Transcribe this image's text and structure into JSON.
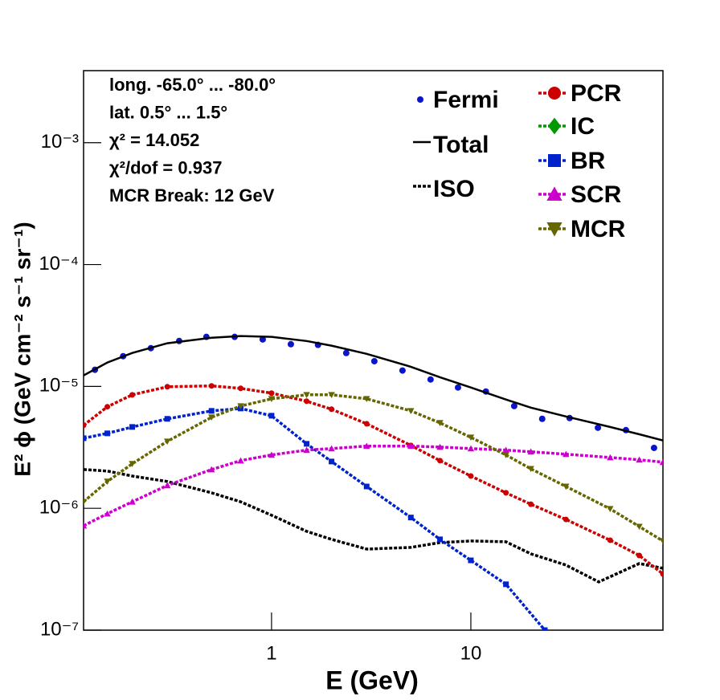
{
  "chart_data": {
    "type": "line",
    "log_x": true,
    "log_y": true,
    "xlim": [
      0.114,
      92
    ],
    "ylim": [
      1e-07,
      0.0039
    ],
    "xticks": [
      1,
      10
    ],
    "yticks": [
      {
        "value": 1e-07,
        "label": "10⁻⁷"
      },
      {
        "value": 1e-06,
        "label": "10⁻⁶"
      },
      {
        "value": 1e-05,
        "label": "10⁻⁵"
      },
      {
        "value": 0.0001,
        "label": "10⁻⁴"
      },
      {
        "value": 0.001,
        "label": "10⁻³"
      }
    ],
    "x_label": "E (GeV)",
    "y_label": "E² ϕ (GeV cm⁻² s⁻¹ sr⁻¹)",
    "annotations": [
      "long. -65.0° ... -80.0°",
      "lat. 0.5° ... 1.5°",
      "χ² = 14.052",
      "χ²/dof = 0.937",
      "MCR Break: 12 GeV"
    ],
    "series": [
      {
        "name": "Fermi",
        "color": "#0a14c8",
        "marker": "circle",
        "line": "none",
        "x": [
          0.13,
          0.18,
          0.248,
          0.344,
          0.471,
          0.653,
          0.903,
          1.25,
          1.71,
          2.37,
          3.28,
          4.54,
          6.28,
          8.62,
          11.9,
          16.5,
          22.8,
          31.3,
          43.4,
          60.0,
          83.0
        ],
        "values": [
          1.37e-05,
          1.77e-05,
          2.06e-05,
          2.36e-05,
          2.55e-05,
          2.55e-05,
          2.43e-05,
          2.22e-05,
          2.19e-05,
          1.88e-05,
          1.61e-05,
          1.35e-05,
          1.14e-05,
          9.8e-06,
          9.08e-06,
          6.9e-06,
          5.42e-06,
          5.5e-06,
          4.58e-06,
          4.38e-06,
          3.13e-06
        ]
      },
      {
        "name": "Total",
        "color": "#000000",
        "marker": "none",
        "line": "solid",
        "x": [
          0.114,
          0.15,
          0.2,
          0.3,
          0.5,
          0.7,
          1,
          1.5,
          2,
          3,
          5,
          7,
          10,
          15,
          20,
          30,
          50,
          70,
          92
        ],
        "values": [
          1.23e-05,
          1.57e-05,
          1.88e-05,
          2.26e-05,
          2.51e-05,
          2.59e-05,
          2.55e-05,
          2.36e-05,
          2.16e-05,
          1.85e-05,
          1.45e-05,
          1.19e-05,
          9.8e-06,
          7.8e-06,
          6.7e-06,
          5.67e-06,
          4.65e-06,
          4.05e-06,
          3.6e-06
        ]
      },
      {
        "name": "ISO",
        "color": "#000000",
        "marker": "none",
        "line": "dotted",
        "x": [
          0.114,
          0.15,
          0.2,
          0.3,
          0.5,
          0.7,
          1,
          1.5,
          2,
          3,
          5,
          7,
          10,
          15,
          20,
          30,
          43.8,
          70,
          92
        ],
        "values": [
          2.08e-06,
          2.02e-06,
          1.84e-06,
          1.66e-06,
          1.34e-06,
          1.13e-06,
          8.77e-07,
          6.47e-07,
          5.56e-07,
          4.63e-07,
          4.78e-07,
          5.23e-07,
          5.39e-07,
          5.31e-07,
          4.23e-07,
          3.42e-07,
          2.49e-07,
          3.52e-07,
          3.22e-07
        ]
      },
      {
        "name": "PCR",
        "color": "#cc0000",
        "marker": "circle",
        "line": "dotted",
        "x": [
          0.114,
          0.15,
          0.2,
          0.3,
          0.5,
          0.7,
          1,
          1.5,
          2,
          3,
          5,
          7,
          10,
          15,
          20,
          30,
          50,
          70,
          92
        ],
        "values": [
          4.8e-06,
          6.81e-06,
          8.53e-06,
          9.94e-06,
          1.01e-05,
          9.64e-06,
          8.81e-06,
          7.56e-06,
          6.5e-06,
          4.94e-06,
          3.28e-06,
          2.46e-06,
          1.84e-06,
          1.34e-06,
          1.08e-06,
          8.1e-07,
          5.47e-07,
          4.1e-07,
          2.89e-07
        ]
      },
      {
        "name": "IC",
        "color": "#009900",
        "marker": "diamond",
        "line": "dotted",
        "x": [],
        "values": []
      },
      {
        "name": "BR",
        "color": "#0022cc",
        "marker": "square",
        "line": "dotted",
        "x": [
          0.114,
          0.15,
          0.2,
          0.3,
          0.5,
          0.7,
          1,
          1.5,
          2,
          3,
          5,
          7,
          10,
          15,
          23.5
        ],
        "values": [
          3.76e-06,
          4.12e-06,
          4.65e-06,
          5.42e-06,
          6.3e-06,
          6.59e-06,
          5.75e-06,
          3.38e-06,
          2.42e-06,
          1.51e-06,
          8.4e-07,
          5.56e-07,
          3.74e-07,
          2.38e-07,
          1e-07
        ]
      },
      {
        "name": "SCR",
        "color": "#cc00cc",
        "marker": "triangle",
        "line": "dotted",
        "x": [
          0.114,
          0.15,
          0.2,
          0.3,
          0.5,
          0.7,
          1,
          1.5,
          2,
          3,
          5,
          7,
          10,
          15,
          20,
          30,
          50,
          70,
          92
        ],
        "values": [
          7.19e-07,
          9.03e-07,
          1.13e-06,
          1.54e-06,
          2.08e-06,
          2.46e-06,
          2.74e-06,
          3e-06,
          3.09e-06,
          3.24e-06,
          3.24e-06,
          3.18e-06,
          3.09e-06,
          3e-06,
          2.91e-06,
          2.78e-06,
          2.61e-06,
          2.5e-06,
          2.39e-06
        ]
      },
      {
        "name": "MCR",
        "color": "#666600",
        "marker": "triangle-down",
        "line": "dotted",
        "x": [
          0.114,
          0.15,
          0.2,
          0.3,
          0.5,
          0.7,
          1,
          1.5,
          2,
          3,
          5,
          7,
          10,
          15,
          20,
          30,
          50,
          70,
          92
        ],
        "values": [
          1.13e-06,
          1.66e-06,
          2.32e-06,
          3.54e-06,
          5.58e-06,
          6.9e-06,
          7.91e-06,
          8.53e-06,
          8.53e-06,
          7.91e-06,
          6.3e-06,
          5.02e-06,
          3.82e-06,
          2.74e-06,
          2.11e-06,
          1.51e-06,
          9.89e-07,
          7.08e-07,
          5.39e-07
        ]
      }
    ]
  }
}
